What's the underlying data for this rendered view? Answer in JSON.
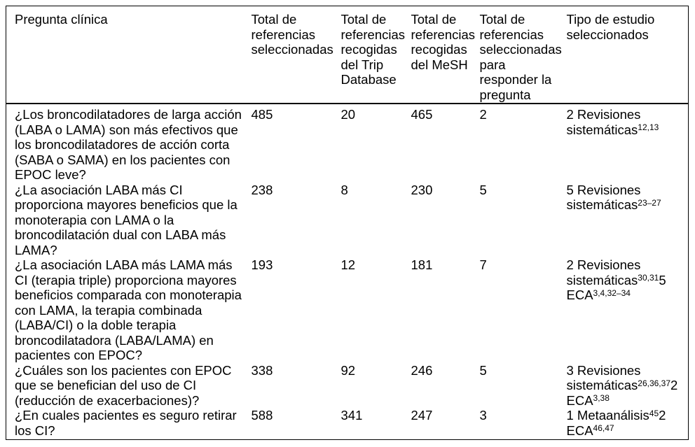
{
  "table": {
    "columns": [
      "Pregunta clínica",
      "Total de referencias seleccionadas",
      "Total de referencias recogidas del Trip Database",
      "Total de referencias recogidas del MeSH",
      "Total de referencias seleccionadas para responder la pregunta",
      "Tipo de estudio seleccionados"
    ],
    "rows": [
      {
        "question": "¿Los broncodilatadores de larga acción (LABA o LAMA) son más efectivos que los broncodilatadores de acción corta (SABA o SAMA) en los pacientes con EPOC leve?",
        "selected": "485",
        "trip": "20",
        "mesh": "465",
        "answer": "2",
        "study_type": [
          {
            "text": "2 Revisiones sistemáticas"
          },
          {
            "sup": "12,13"
          }
        ]
      },
      {
        "question": "¿La asociación LABA más CI proporciona mayores beneficios que la monoterapia con LAMA o la broncodilatación dual con LABA más LAMA?",
        "selected": "238",
        "trip": "8",
        "mesh": "230",
        "answer": "5",
        "study_type": [
          {
            "text": "5 Revisiones sistemáticas"
          },
          {
            "sup": "23–27"
          }
        ]
      },
      {
        "question": "¿La asociación LABA más LAMA más CI (terapia triple) proporciona mayores beneficios comparada con monoterapia con LAMA, la terapia combinada (LABA/CI) o la doble terapia broncodilatadora (LABA/LAMA) en pacientes con EPOC?",
        "selected": "193",
        "trip": "12",
        "mesh": "181",
        "answer": "7",
        "study_type": [
          {
            "text": "2 Revisiones sistemáticas"
          },
          {
            "sup": "30,31"
          },
          {
            "text": "5 ECA"
          },
          {
            "sup": "3,4,32–34"
          }
        ]
      },
      {
        "question": "¿Cuáles son los pacientes con EPOC que se benefician del uso de CI (reducción de exacerbaciones)?",
        "selected": "338",
        "trip": "92",
        "mesh": "246",
        "answer": "5",
        "study_type": [
          {
            "text": "3 Revisiones sistemáticas"
          },
          {
            "sup": "26,36,37"
          },
          {
            "text": "2 ECA"
          },
          {
            "sup": "3,38"
          }
        ]
      },
      {
        "question": "¿En cuales pacientes es seguro retirar los CI?",
        "selected": "588",
        "trip": "341",
        "mesh": "247",
        "answer": "3",
        "study_type": [
          {
            "text": "1 Metaanálisis"
          },
          {
            "sup": "45"
          },
          {
            "text": "2 ECA"
          },
          {
            "sup": "46,47"
          }
        ]
      }
    ]
  }
}
